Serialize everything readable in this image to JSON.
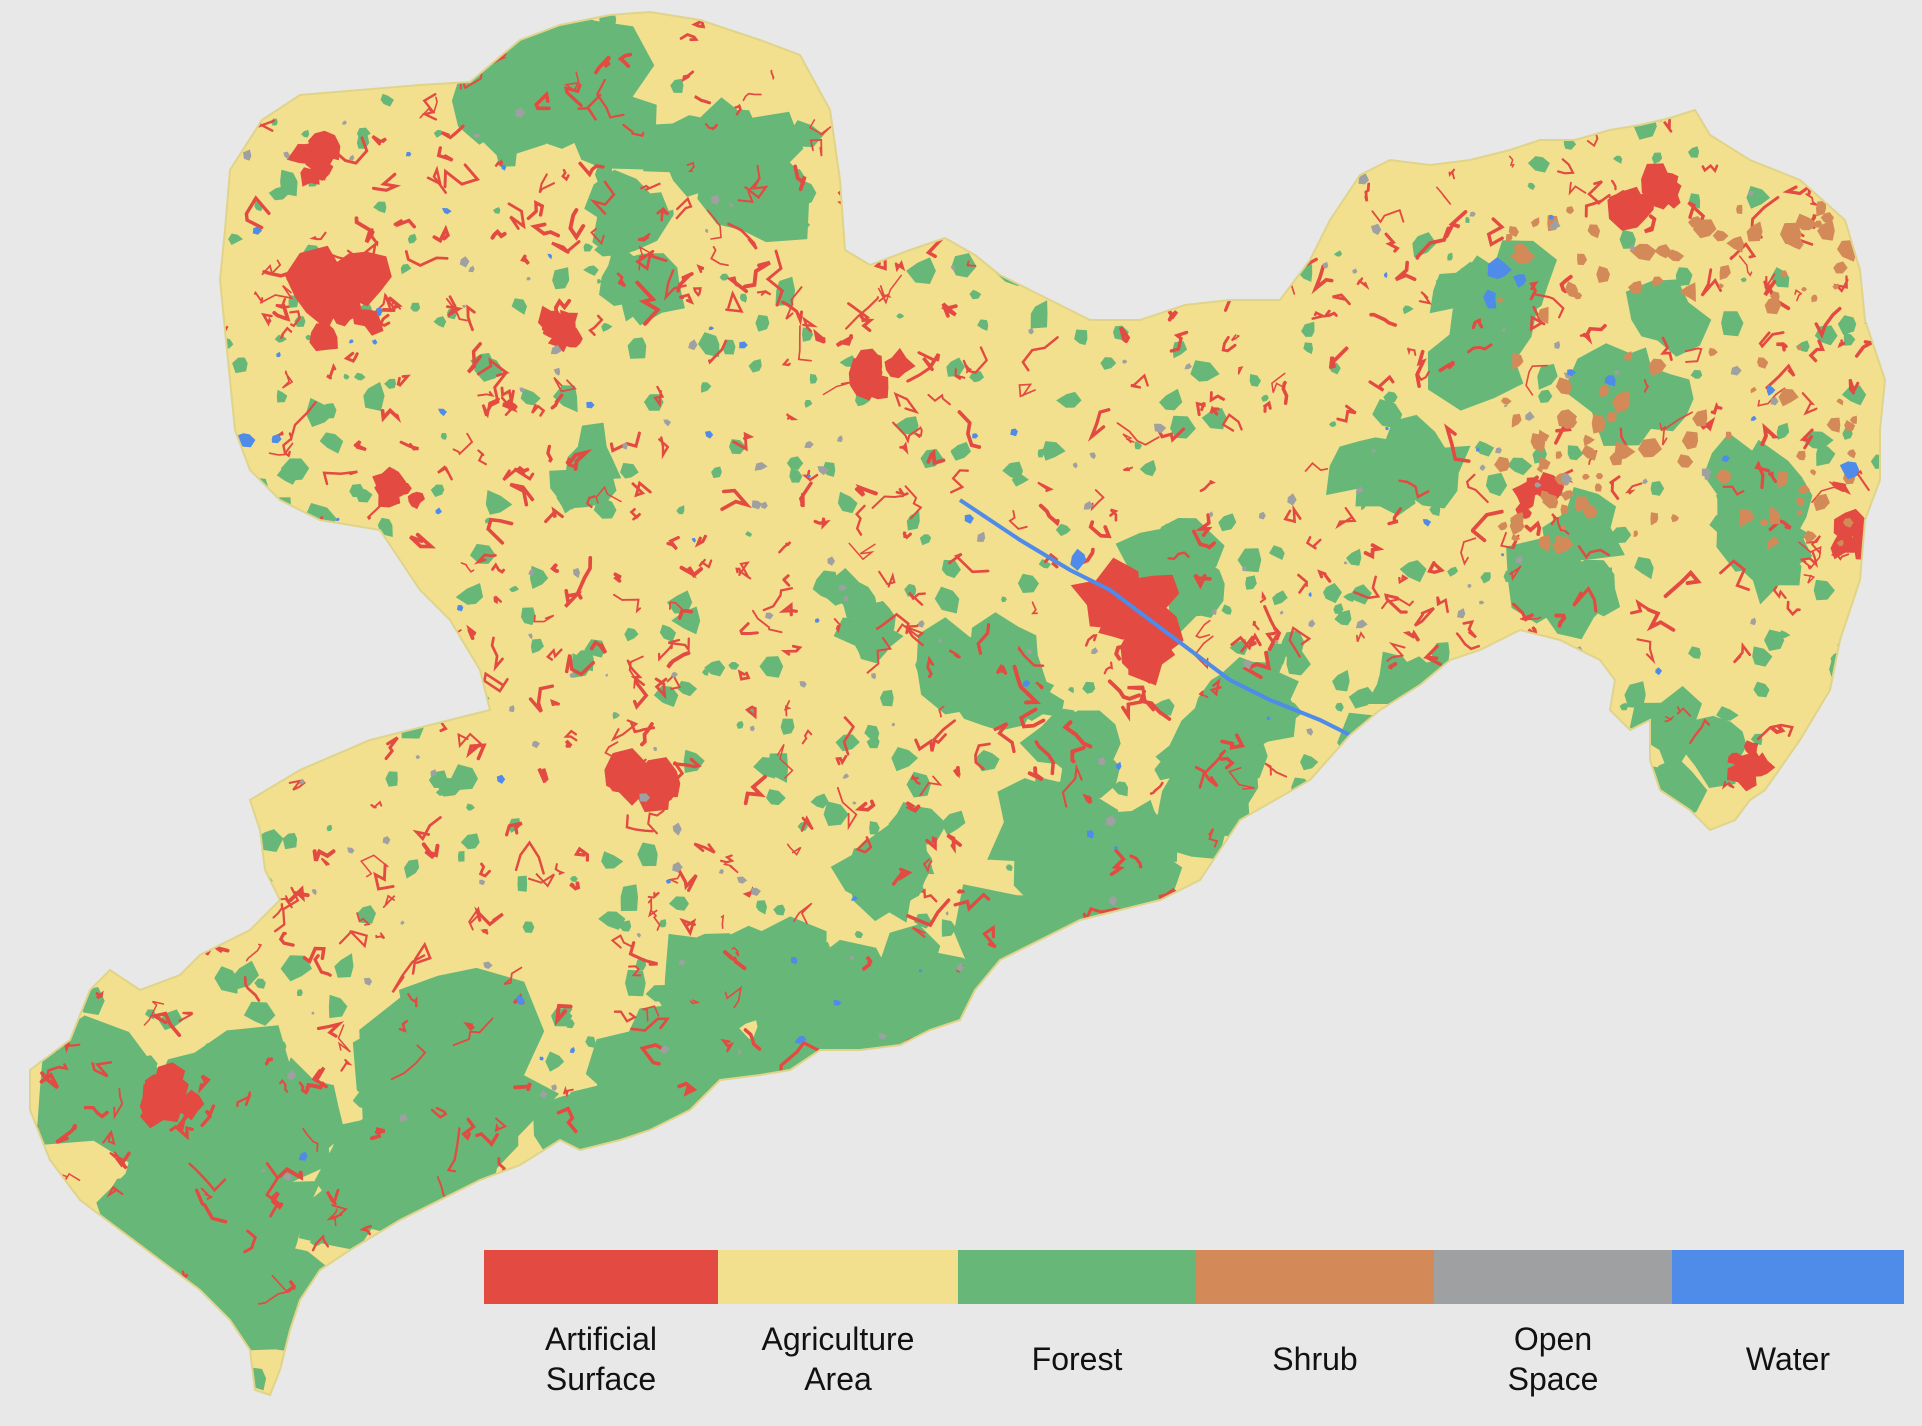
{
  "map": {
    "land_cover_colors": {
      "artificial": "#e34a41",
      "agriculture": "#f2e08e",
      "forest": "#67b878",
      "shrub": "#d48a58",
      "open_space": "#9fa0a2",
      "water": "#4f8be8"
    }
  },
  "legend": {
    "items": [
      {
        "label": "Artificial\nSurface",
        "color": "#e34a41"
      },
      {
        "label": "Agriculture\nArea",
        "color": "#f2e08e"
      },
      {
        "label": "Forest",
        "color": "#67b878"
      },
      {
        "label": "Shrub",
        "color": "#d48a58"
      },
      {
        "label": "Open\nSpace",
        "color": "#9fa0a2"
      },
      {
        "label": "Water",
        "color": "#4f8be8"
      }
    ]
  }
}
